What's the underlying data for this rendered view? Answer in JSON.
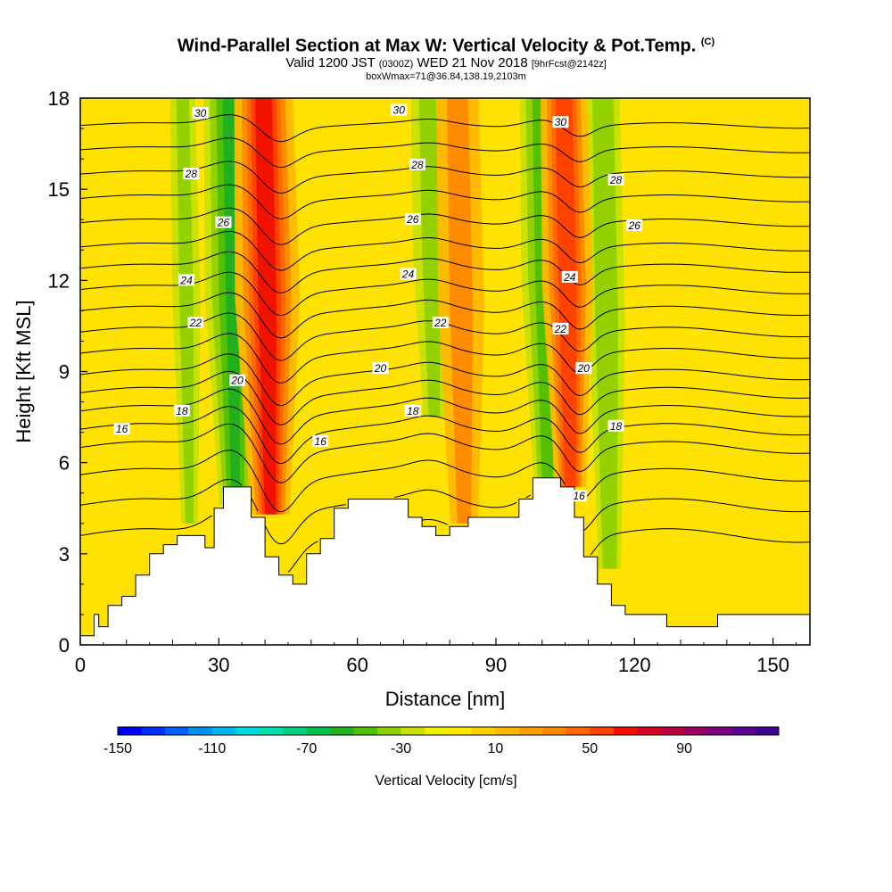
{
  "title": {
    "main": "Wind-Parallel Section at Max W: Vertical Velocity & Pot.Temp.",
    "copyright": "(C)",
    "valid_prefix": "Valid 1200 JST",
    "valid_utc": "(0300Z)",
    "valid_date": "WED 21 Nov 2018",
    "forecast": "[9hrFcst@2142z]",
    "box": "boxWmax=71@36.84,138.19,2103m"
  },
  "chart_data": {
    "type": "heatmap",
    "xlabel": "Distance [nm]",
    "ylabel": "Height [Kft MSL]",
    "xlim": [
      0,
      158
    ],
    "ylim": [
      0,
      18
    ],
    "x_ticks": [
      0,
      30,
      60,
      90,
      120,
      150
    ],
    "y_ticks": [
      0,
      3,
      6,
      9,
      12,
      15,
      18
    ],
    "colorbar": {
      "label": "Vertical Velocity [cm/s]",
      "tick_labels": [
        -150,
        -110,
        -70,
        -30,
        10,
        50,
        90
      ],
      "range": [
        -150,
        130
      ],
      "step": 10,
      "colors": [
        "#0000f0",
        "#0030f8",
        "#0060f8",
        "#0090f0",
        "#00b8f0",
        "#00d8e0",
        "#00e0b0",
        "#00d080",
        "#00c050",
        "#20b020",
        "#50c000",
        "#90d000",
        "#c8e000",
        "#f0f000",
        "#ffe800",
        "#ffd000",
        "#ffb800",
        "#ffa000",
        "#ff8800",
        "#ff6800",
        "#ff4000",
        "#f01000",
        "#d80020",
        "#b80040",
        "#980060",
        "#7a0080",
        "#5a0090",
        "#400090"
      ]
    },
    "updraft_bands": [
      {
        "center": 40.5,
        "peak_cm_s": 71,
        "color": "red"
      },
      {
        "center": 105.5,
        "peak_cm_s": 55,
        "color": "red"
      },
      {
        "center": 82.5,
        "peak_cm_s": 25,
        "color": "orange"
      }
    ],
    "downdraft_bands": [
      {
        "center": 33,
        "peak_cm_s": -50
      },
      {
        "center": 100.5,
        "peak_cm_s": -40
      },
      {
        "center": 114,
        "peak_cm_s": -30
      },
      {
        "center": 76,
        "peak_cm_s": -25
      },
      {
        "center": 23,
        "peak_cm_s": -20
      }
    ],
    "terrain_kft": [
      [
        0,
        0.3
      ],
      [
        3,
        0.3
      ],
      [
        3,
        1.0
      ],
      [
        4,
        1.0
      ],
      [
        4,
        0.6
      ],
      [
        6,
        0.6
      ],
      [
        6,
        1.3
      ],
      [
        9,
        1.3
      ],
      [
        9,
        1.6
      ],
      [
        12,
        1.6
      ],
      [
        12,
        2.3
      ],
      [
        15,
        2.3
      ],
      [
        15,
        3.0
      ],
      [
        18,
        3.0
      ],
      [
        18,
        3.3
      ],
      [
        21,
        3.3
      ],
      [
        21,
        3.6
      ],
      [
        27,
        3.6
      ],
      [
        27,
        3.2
      ],
      [
        29,
        3.2
      ],
      [
        29,
        4.5
      ],
      [
        31,
        4.5
      ],
      [
        31,
        5.2
      ],
      [
        37,
        5.2
      ],
      [
        37,
        4.2
      ],
      [
        40,
        4.2
      ],
      [
        40,
        2.9
      ],
      [
        43,
        2.9
      ],
      [
        43,
        2.3
      ],
      [
        46,
        2.3
      ],
      [
        46,
        2.0
      ],
      [
        49,
        2.0
      ],
      [
        49,
        3.0
      ],
      [
        52,
        3.0
      ],
      [
        52,
        3.5
      ],
      [
        55,
        3.5
      ],
      [
        55,
        4.5
      ],
      [
        58,
        4.5
      ],
      [
        58,
        4.8
      ],
      [
        71,
        4.8
      ],
      [
        71,
        4.2
      ],
      [
        74,
        4.2
      ],
      [
        74,
        3.9
      ],
      [
        77,
        3.9
      ],
      [
        77,
        3.6
      ],
      [
        80,
        3.6
      ],
      [
        80,
        3.9
      ],
      [
        84,
        3.9
      ],
      [
        84,
        4.2
      ],
      [
        95,
        4.2
      ],
      [
        95,
        4.8
      ],
      [
        98,
        4.8
      ],
      [
        98,
        5.5
      ],
      [
        104,
        5.5
      ],
      [
        104,
        5.2
      ],
      [
        107,
        5.2
      ],
      [
        107,
        4.2
      ],
      [
        109,
        4.2
      ],
      [
        109,
        2.9
      ],
      [
        112,
        2.9
      ],
      [
        112,
        2.0
      ],
      [
        115,
        2.0
      ],
      [
        115,
        1.3
      ],
      [
        118,
        1.3
      ],
      [
        118,
        1.0
      ],
      [
        127,
        1.0
      ],
      [
        127,
        0.6
      ],
      [
        138,
        0.6
      ],
      [
        138,
        1.0
      ],
      [
        158,
        1.0
      ]
    ],
    "isentropes": [
      {
        "theta": 16,
        "label": "16",
        "base_kft": 6.5
      },
      {
        "theta": 17,
        "label": "",
        "base_kft": 7.1
      },
      {
        "theta": 18,
        "label": "18",
        "base_kft": 7.7
      },
      {
        "theta": 19,
        "label": "",
        "base_kft": 8.3
      },
      {
        "theta": 20,
        "label": "20",
        "base_kft": 8.9
      },
      {
        "theta": 21,
        "label": "",
        "base_kft": 9.6
      },
      {
        "theta": 22,
        "label": "22",
        "base_kft": 10.3
      },
      {
        "theta": 23,
        "label": "",
        "base_kft": 11.0
      },
      {
        "theta": 24,
        "label": "24",
        "base_kft": 11.7
      },
      {
        "theta": 25,
        "label": "",
        "base_kft": 12.4
      },
      {
        "theta": 26,
        "label": "26",
        "base_kft": 13.1
      },
      {
        "theta": 27,
        "label": "",
        "base_kft": 13.9
      },
      {
        "theta": 28,
        "label": "28",
        "base_kft": 14.7
      },
      {
        "theta": 29,
        "label": "",
        "base_kft": 15.5
      },
      {
        "theta": 30,
        "label": "30",
        "base_kft": 16.3
      },
      {
        "theta": 31,
        "label": "",
        "base_kft": 17.1
      }
    ],
    "low_isentropes": [
      {
        "theta": 13,
        "base_kft": 3.6
      },
      {
        "theta": 14,
        "base_kft": 4.6
      },
      {
        "theta": 15,
        "base_kft": 5.6
      }
    ],
    "contour_labels": [
      {
        "text": "30",
        "x": 26,
        "y": 17.5
      },
      {
        "text": "30",
        "x": 69,
        "y": 17.6
      },
      {
        "text": "30",
        "x": 104,
        "y": 17.2
      },
      {
        "text": "28",
        "x": 24,
        "y": 15.5
      },
      {
        "text": "28",
        "x": 73,
        "y": 15.8
      },
      {
        "text": "28",
        "x": 116,
        "y": 15.3
      },
      {
        "text": "26",
        "x": 31,
        "y": 13.9
      },
      {
        "text": "26",
        "x": 72,
        "y": 14.0
      },
      {
        "text": "26",
        "x": 120,
        "y": 13.8
      },
      {
        "text": "24",
        "x": 23,
        "y": 12.0
      },
      {
        "text": "24",
        "x": 71,
        "y": 12.2
      },
      {
        "text": "24",
        "x": 106,
        "y": 12.1
      },
      {
        "text": "22",
        "x": 25,
        "y": 10.6
      },
      {
        "text": "22",
        "x": 78,
        "y": 10.6
      },
      {
        "text": "22",
        "x": 104,
        "y": 10.4
      },
      {
        "text": "20",
        "x": 34,
        "y": 8.7
      },
      {
        "text": "20",
        "x": 65,
        "y": 9.1
      },
      {
        "text": "20",
        "x": 109,
        "y": 9.1
      },
      {
        "text": "18",
        "x": 22,
        "y": 7.7
      },
      {
        "text": "18",
        "x": 72,
        "y": 7.7
      },
      {
        "text": "18",
        "x": 116,
        "y": 7.2
      },
      {
        "text": "16",
        "x": 9,
        "y": 7.1
      },
      {
        "text": "16",
        "x": 52,
        "y": 6.7
      },
      {
        "text": "16",
        "x": 108,
        "y": 4.9
      }
    ]
  }
}
